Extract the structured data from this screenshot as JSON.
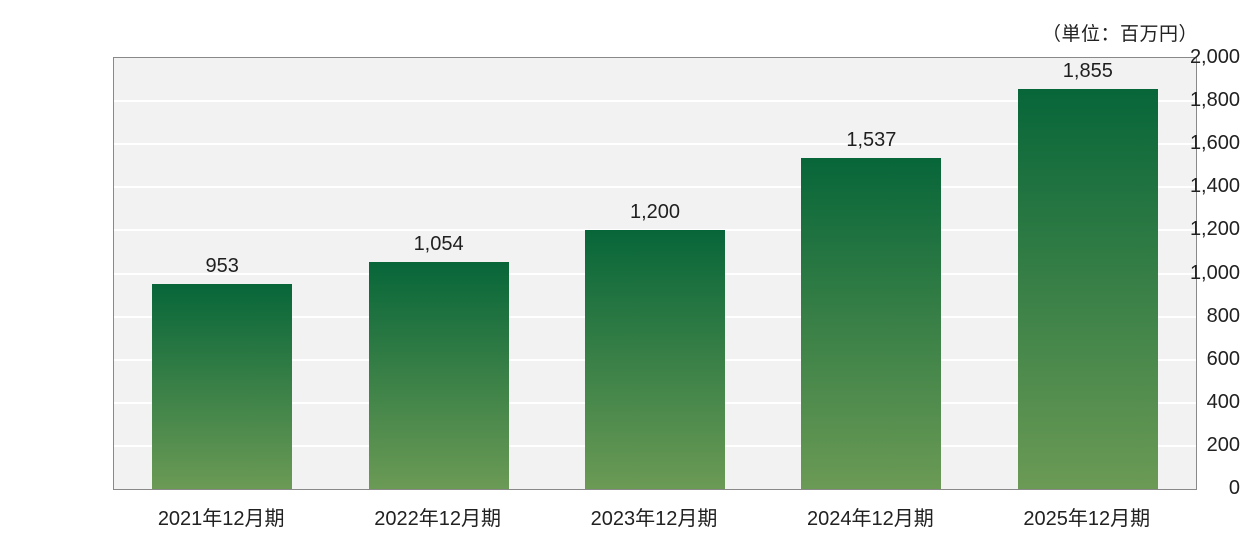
{
  "unit_label": "（単位：百万円）",
  "colors": {
    "bar_gradient_top": "#076639",
    "bar_gradient_bottom": "#6b9a55",
    "plot_background": "#f2f2f2",
    "plot_border": "#898989",
    "gridline": "#ffffff",
    "text": "#212121"
  },
  "chart_data": {
    "type": "bar",
    "title": "",
    "unit": "（単位：百万円）",
    "categories": [
      "2021年12月期",
      "2022年12月期",
      "2023年12月期",
      "2024年12月期",
      "2025年12月期"
    ],
    "values": [
      953,
      1054,
      1200,
      1537,
      1855
    ],
    "value_labels": [
      "953",
      "1,054",
      "1,200",
      "1,537",
      "1,855"
    ],
    "xlabel": "",
    "ylabel": "",
    "ylim": [
      0,
      2000
    ],
    "ytick_interval": 200,
    "ytick_labels": [
      "0",
      "200",
      "400",
      "600",
      "800",
      "1,000",
      "1,200",
      "1,400",
      "1,600",
      "1,800",
      "2,000"
    ],
    "grid": "horizontal",
    "legend": "none",
    "bar_fill": "vertical gradient, dark green top to light green bottom"
  }
}
